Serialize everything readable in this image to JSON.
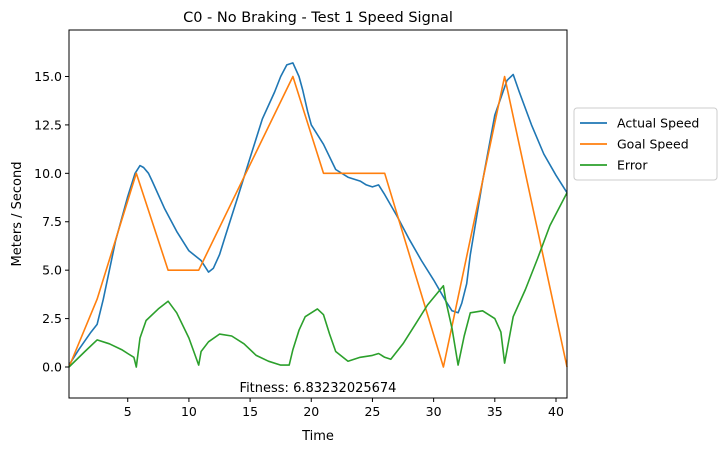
{
  "chart_data": {
    "type": "line",
    "title": "C0 - No Braking - Test 1  Speed Signal",
    "xlabel": "Time",
    "ylabel": "Meters / Second",
    "xlim": [
      0.2,
      40.9
    ],
    "ylim": [
      -1.6,
      17.4
    ],
    "xticks": [
      5,
      10,
      15,
      20,
      25,
      30,
      35,
      40
    ],
    "xtick_labels": [
      "5",
      "10",
      "15",
      "20",
      "25",
      "30",
      "35",
      "40"
    ],
    "yticks": [
      0.0,
      2.5,
      5.0,
      7.5,
      10.0,
      12.5,
      15.0
    ],
    "ytick_labels": [
      "0.0",
      "2.5",
      "5.0",
      "7.5",
      "10.0",
      "12.5",
      "15.0"
    ],
    "grid": false,
    "legend_position": "outside-right",
    "annotation": "Fitness: 6.83232025674",
    "series": [
      {
        "name": "Actual Speed",
        "color": "#1f77b4",
        "x": [
          0.2,
          1.0,
          2.0,
          2.5,
          3.0,
          4.0,
          5.0,
          5.6,
          6.0,
          6.3,
          6.7,
          7.0,
          8.0,
          9.0,
          10.0,
          11.0,
          11.6,
          12.0,
          12.5,
          13.0,
          14.0,
          15.0,
          16.0,
          17.0,
          17.5,
          18.0,
          18.5,
          19.0,
          19.3,
          19.7,
          20.0,
          21.0,
          22.0,
          23.0,
          24.0,
          24.5,
          25.0,
          25.5,
          26.0,
          27.0,
          28.0,
          29.0,
          30.0,
          31.0,
          31.5,
          32.0,
          32.3,
          32.7,
          33.0,
          34.0,
          35.0,
          36.0,
          36.5,
          37.0,
          38.0,
          39.0,
          40.0,
          40.9
        ],
        "y": [
          0.1,
          0.9,
          1.8,
          2.2,
          3.5,
          6.5,
          8.8,
          10.0,
          10.4,
          10.3,
          10.0,
          9.6,
          8.2,
          7.0,
          6.0,
          5.5,
          4.9,
          5.1,
          5.8,
          6.8,
          8.8,
          10.8,
          12.8,
          14.2,
          15.0,
          15.6,
          15.7,
          15.0,
          14.3,
          13.2,
          12.5,
          11.5,
          10.2,
          9.8,
          9.6,
          9.4,
          9.3,
          9.4,
          8.9,
          7.8,
          6.6,
          5.5,
          4.5,
          3.4,
          2.9,
          2.8,
          3.3,
          4.3,
          5.8,
          9.6,
          13.0,
          14.8,
          15.1,
          14.2,
          12.5,
          11.0,
          9.9,
          9.0
        ]
      },
      {
        "name": "Goal Speed",
        "color": "#ff7f0e",
        "x": [
          0.2,
          2.5,
          5.7,
          8.3,
          10.8,
          18.5,
          21.0,
          26.0,
          30.8,
          35.8,
          40.9
        ],
        "y": [
          0.0,
          3.5,
          10.0,
          5.0,
          5.0,
          15.0,
          10.0,
          10.0,
          0.0,
          15.0,
          0.0
        ]
      },
      {
        "name": "Error",
        "color": "#2ca02c",
        "x": [
          0.2,
          1.5,
          2.5,
          3.5,
          4.5,
          5.0,
          5.5,
          5.7,
          6.0,
          6.5,
          7.5,
          8.3,
          9.0,
          10.0,
          10.8,
          11.0,
          11.6,
          12.5,
          13.5,
          14.5,
          15.5,
          16.5,
          17.5,
          18.2,
          18.5,
          19.0,
          19.5,
          20.0,
          20.5,
          21.0,
          21.5,
          22.0,
          23.0,
          24.0,
          25.0,
          25.5,
          26.0,
          26.5,
          27.5,
          28.5,
          29.5,
          30.8,
          31.0,
          31.5,
          32.0,
          32.5,
          33.0,
          34.0,
          35.0,
          35.5,
          35.8,
          36.5,
          37.5,
          38.5,
          39.5,
          40.9
        ],
        "y": [
          0.0,
          0.8,
          1.4,
          1.2,
          0.9,
          0.7,
          0.5,
          0.0,
          1.5,
          2.4,
          3.0,
          3.4,
          2.8,
          1.5,
          0.1,
          0.8,
          1.3,
          1.7,
          1.6,
          1.2,
          0.6,
          0.3,
          0.1,
          0.1,
          0.9,
          1.9,
          2.6,
          2.8,
          3.0,
          2.7,
          1.7,
          0.8,
          0.3,
          0.5,
          0.6,
          0.7,
          0.5,
          0.4,
          1.2,
          2.2,
          3.2,
          4.2,
          3.4,
          2.0,
          0.1,
          1.6,
          2.8,
          2.9,
          2.5,
          1.8,
          0.2,
          2.6,
          4.0,
          5.6,
          7.3,
          9.0
        ]
      }
    ]
  }
}
